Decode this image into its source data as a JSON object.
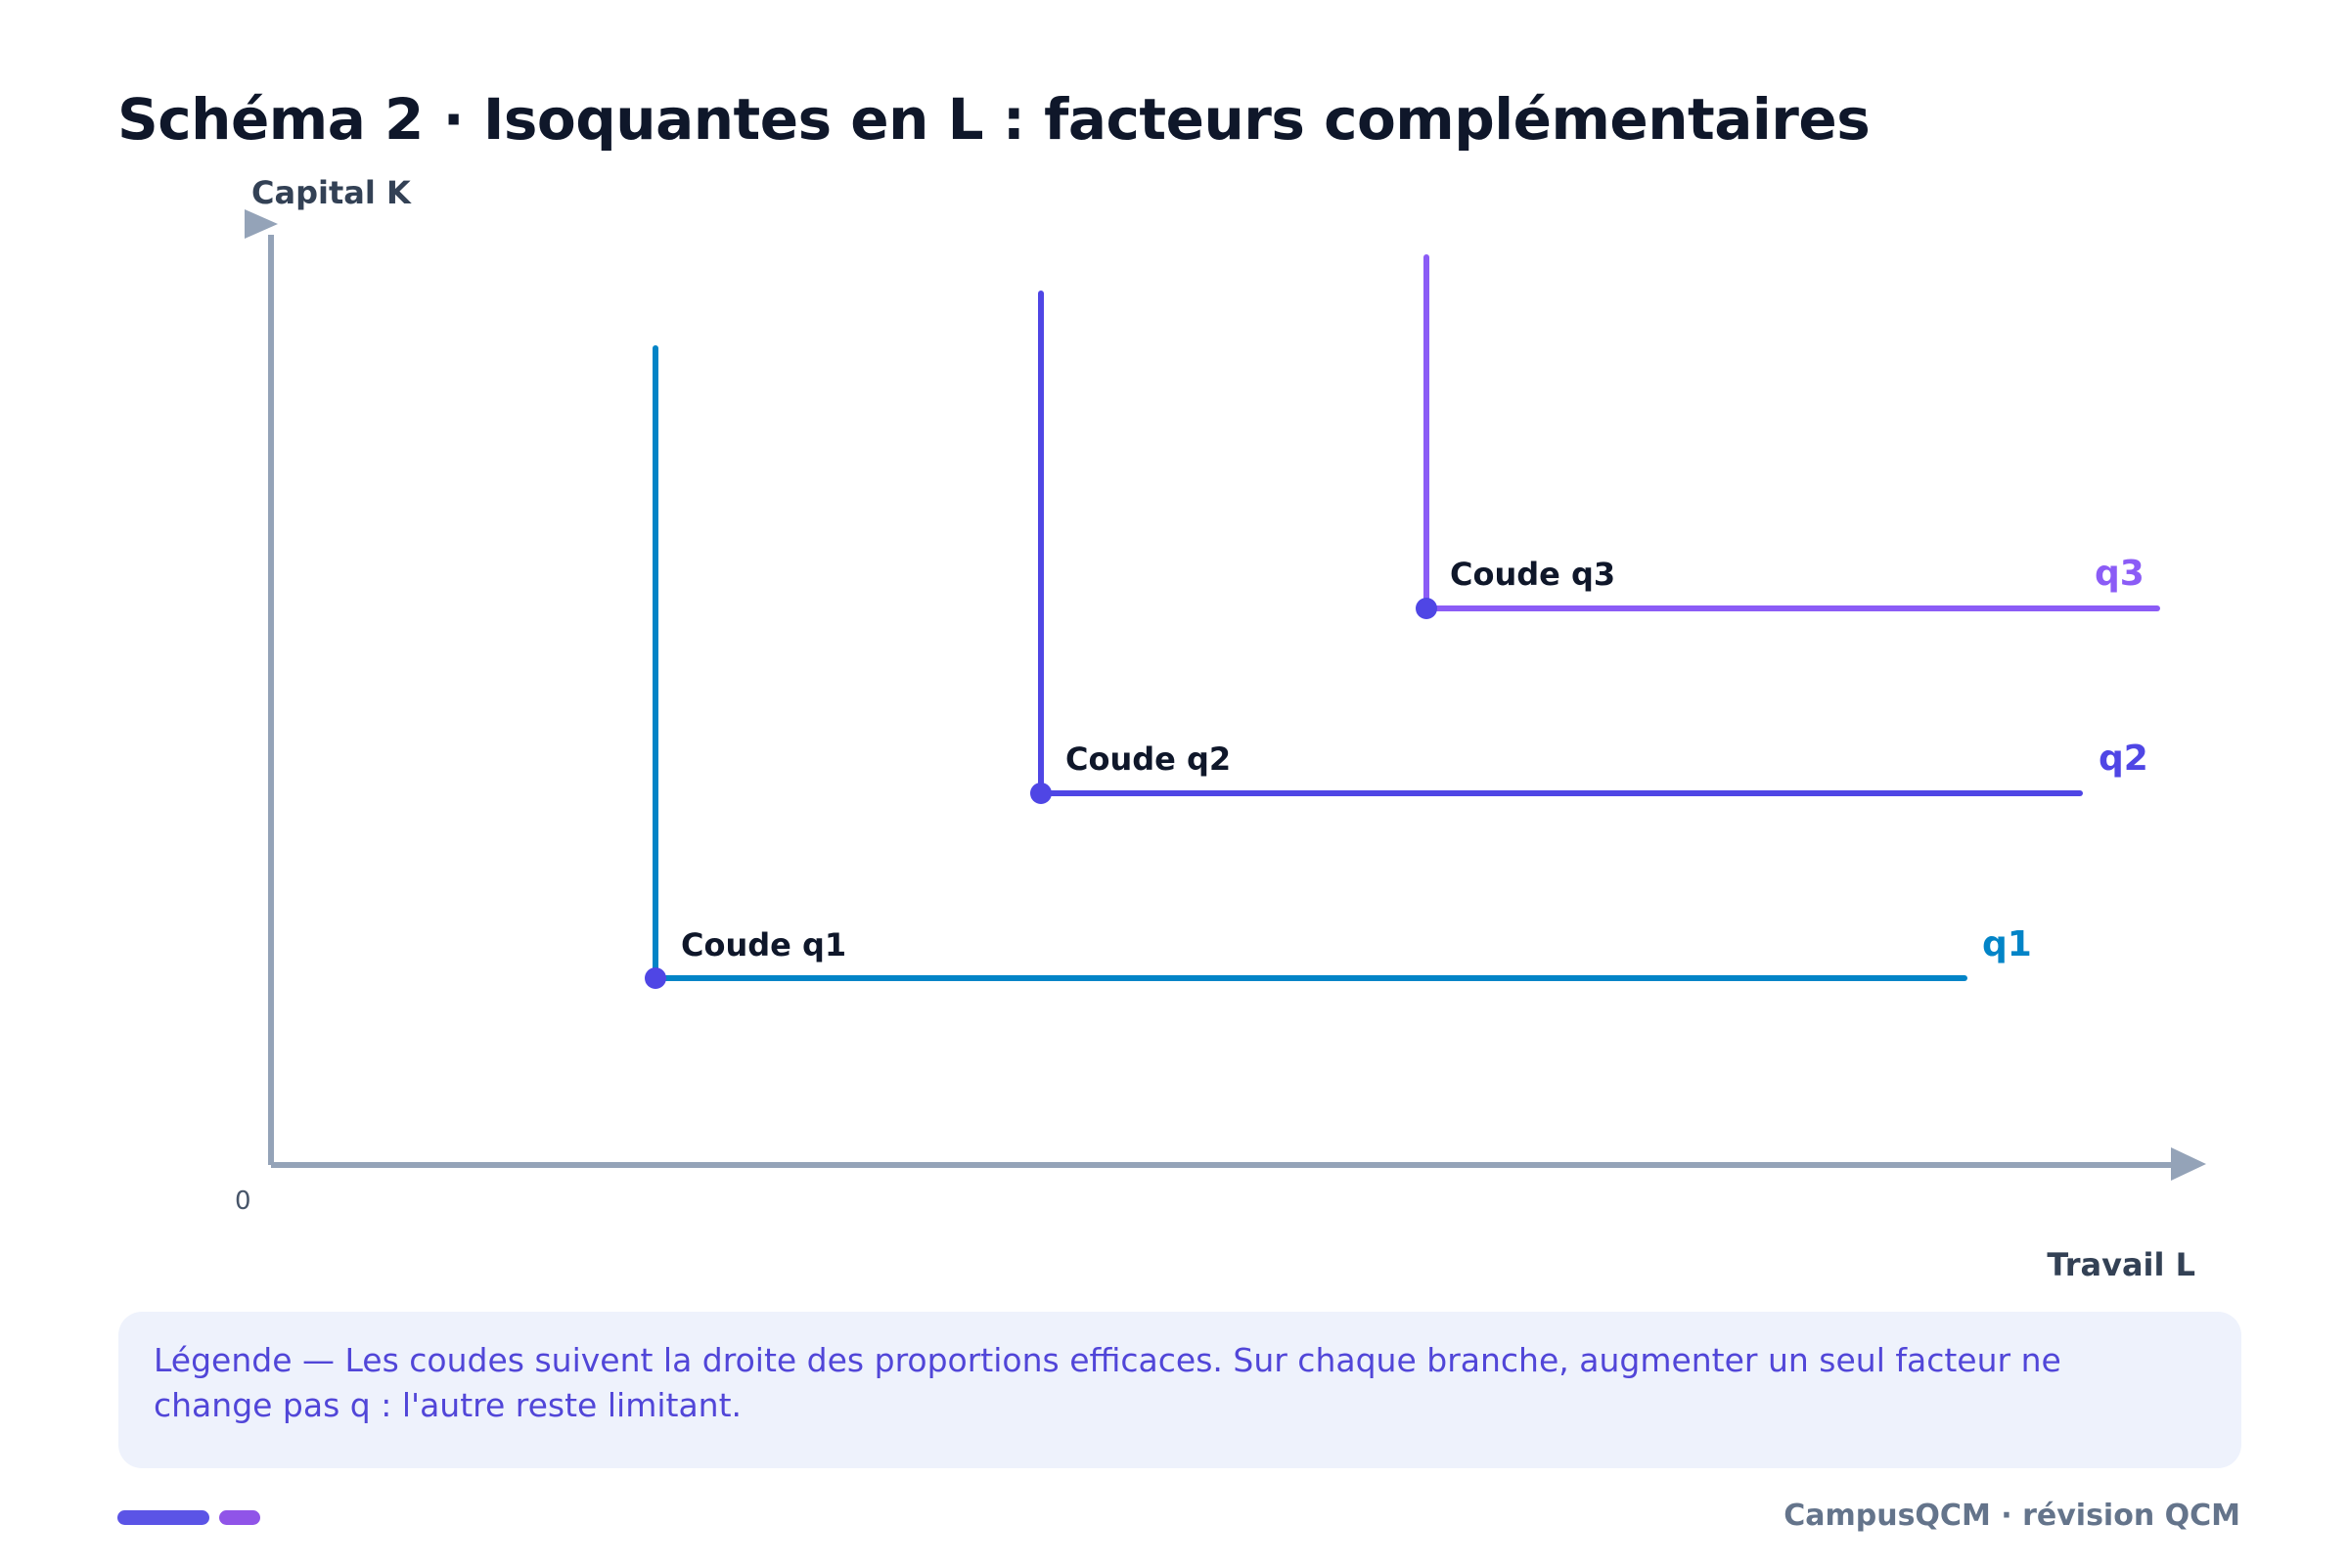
{
  "title": "Schéma 2 · Isoquantes en L : facteurs complémentaires",
  "axes": {
    "y_label": "Capital K",
    "x_label": "Travail L",
    "origin_label": "0",
    "color": "#94a3b8"
  },
  "isoquants": [
    {
      "id": "q1",
      "name": "q1",
      "corner_label": "Coude q1",
      "color": "#0284c7"
    },
    {
      "id": "q2",
      "name": "q2",
      "corner_label": "Coude q2",
      "color": "#4f46e5"
    },
    {
      "id": "q3",
      "name": "q3",
      "corner_label": "Coude q3",
      "color": "#8b5cf6"
    }
  ],
  "corner_dot_color": "#4f46e5",
  "legend": {
    "text": "Légende — Les coudes suivent la droite des proportions efficaces. Sur chaque branche, augmenter un seul facteur ne change pas q : l'autre reste limitant."
  },
  "footer": {
    "brand": "CampusQCM · révision QCM"
  }
}
